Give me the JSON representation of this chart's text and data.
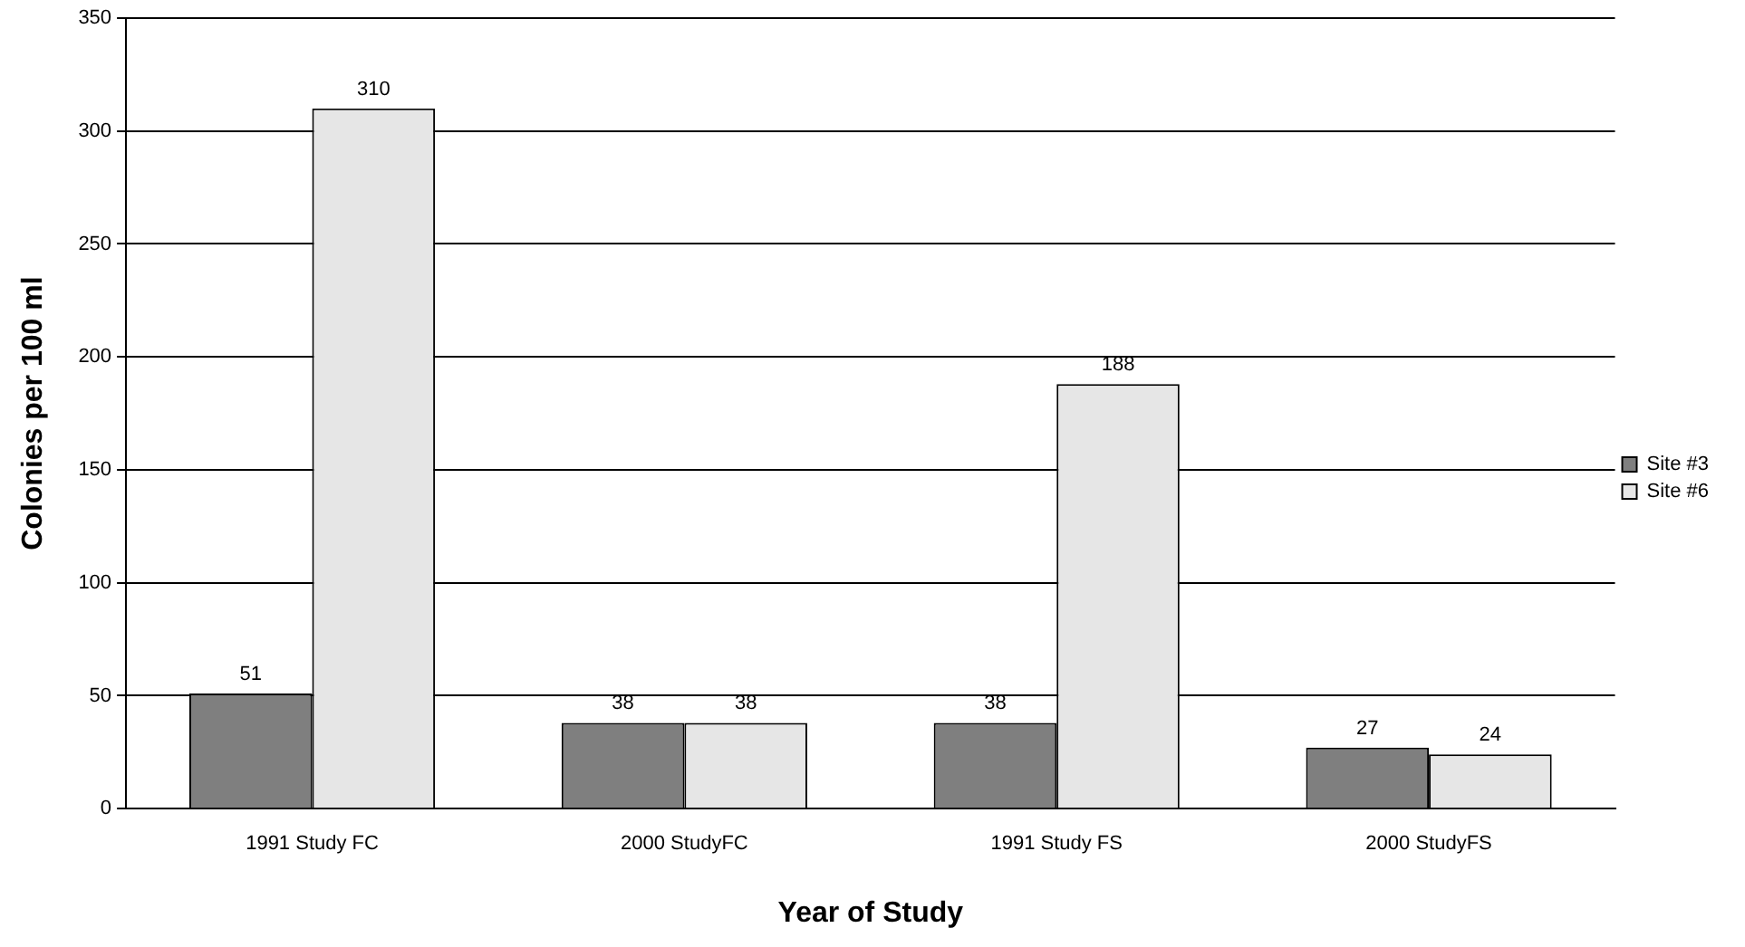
{
  "chart_data": {
    "type": "bar",
    "xlabel": "Year of Study",
    "ylabel": "Colonies per 100 ml",
    "categories": [
      "1991 Study FC",
      "2000 StudyFC",
      "1991 Study FS",
      "2000 StudyFS"
    ],
    "series": [
      {
        "name": "Site #3",
        "color": "#7f7f7f",
        "values": [
          51,
          38,
          38,
          27
        ]
      },
      {
        "name": "Site #6",
        "color": "#e6e6e6",
        "values": [
          310,
          38,
          188,
          24
        ]
      }
    ],
    "ylim": [
      0,
      350
    ],
    "yticks": [
      0,
      50,
      100,
      150,
      200,
      250,
      300,
      350
    ],
    "grid": "y",
    "legend": "right",
    "data_labels": true
  }
}
